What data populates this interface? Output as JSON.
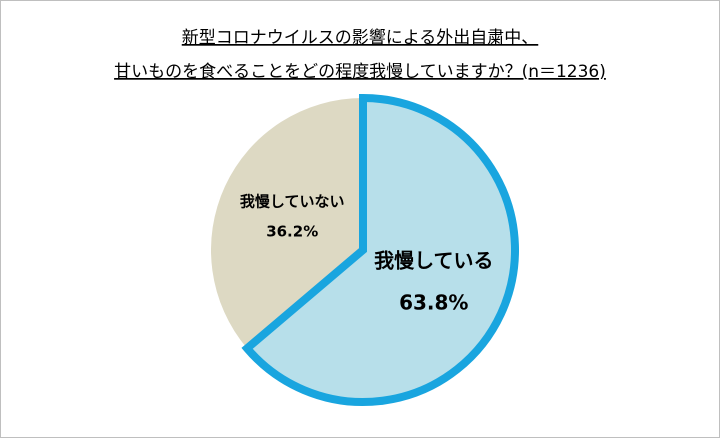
{
  "chart_data": {
    "type": "pie",
    "title": [
      "新型コロナウイルスの影響による外出自粛中、",
      "甘いものを食べることをどの程度我慢していますか？(n＝1236)"
    ],
    "categories": [
      "我慢している",
      "我慢していない"
    ],
    "values": [
      63.8,
      36.2
    ],
    "value_labels": [
      "63.8%",
      "36.2%"
    ],
    "colors": [
      "#b7dfea",
      "#ddd9c3"
    ]
  }
}
